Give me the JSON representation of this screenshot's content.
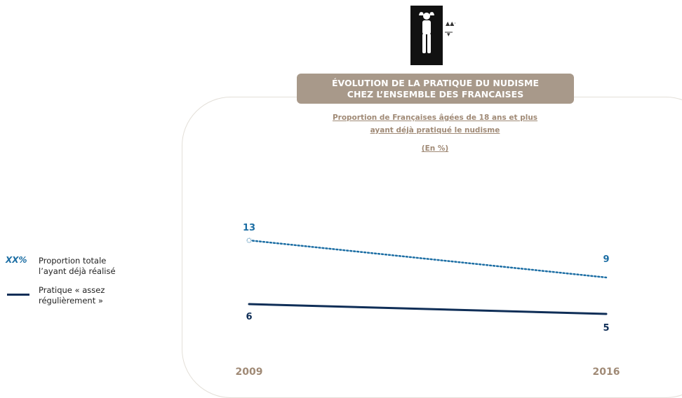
{
  "title": {
    "line1": "ÉVOLUTION DE LA PRATIQUE DU NUDISME",
    "line2": "CHEZ L’ENSEMBLE DES FRANCAISES"
  },
  "subtitle": {
    "line1": "Proportion de Françaises âgées de 18 ans et plus",
    "line2": "ayant déjà pratiqué le nudisme",
    "unit": "(En %)"
  },
  "legend": {
    "total_marker": "XX%",
    "total_label_line1": "Proportion totale",
    "total_label_line2": "l’ayant déjà réalisé",
    "regular_label_line1": "Pratique « assez",
    "regular_label_line2": "régulièrement »"
  },
  "colors": {
    "total": "#1c6ea4",
    "regular": "#0f2e57",
    "title_bg": "#a8998a",
    "year": "#a08a76"
  },
  "icon": "person-lying-icon",
  "chart_data": {
    "type": "line",
    "x": [
      "2009",
      "2016"
    ],
    "series": [
      {
        "name": "Proportion totale l’ayant déjà réalisé",
        "values": [
          13,
          9
        ],
        "style": "dotted"
      },
      {
        "name": "Pratique « assez régulièrement »",
        "values": [
          6,
          5
        ],
        "style": "solid"
      }
    ],
    "title": "ÉVOLUTION DE LA PRATIQUE DU NUDISME CHEZ L’ENSEMBLE DES FRANCAISES",
    "ylabel": "(En %)",
    "grid": false,
    "legend_position": "left"
  }
}
